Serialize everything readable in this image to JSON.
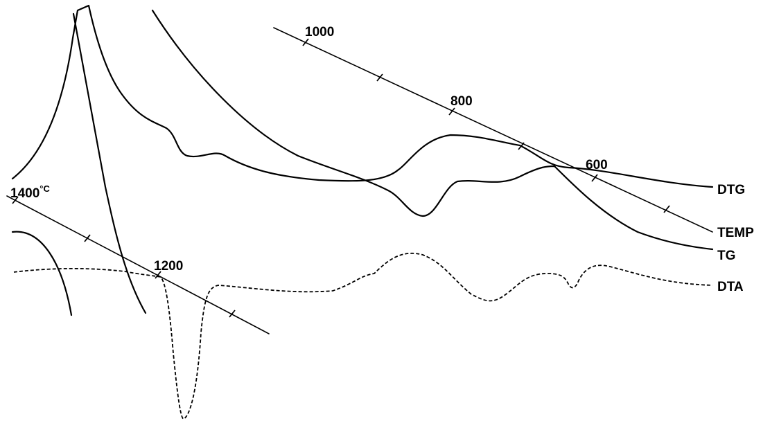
{
  "chart_data": {
    "type": "line",
    "curves": [
      {
        "name": "DTG",
        "style": "solid"
      },
      {
        "name": "TEMP",
        "style": "solid"
      },
      {
        "name": "TG",
        "style": "solid"
      },
      {
        "name": "DTA",
        "style": "dashed"
      }
    ],
    "temperature_labels": [
      "1000",
      "800",
      "600",
      "1400",
      "1200"
    ],
    "temperature_unit": "°C"
  }
}
